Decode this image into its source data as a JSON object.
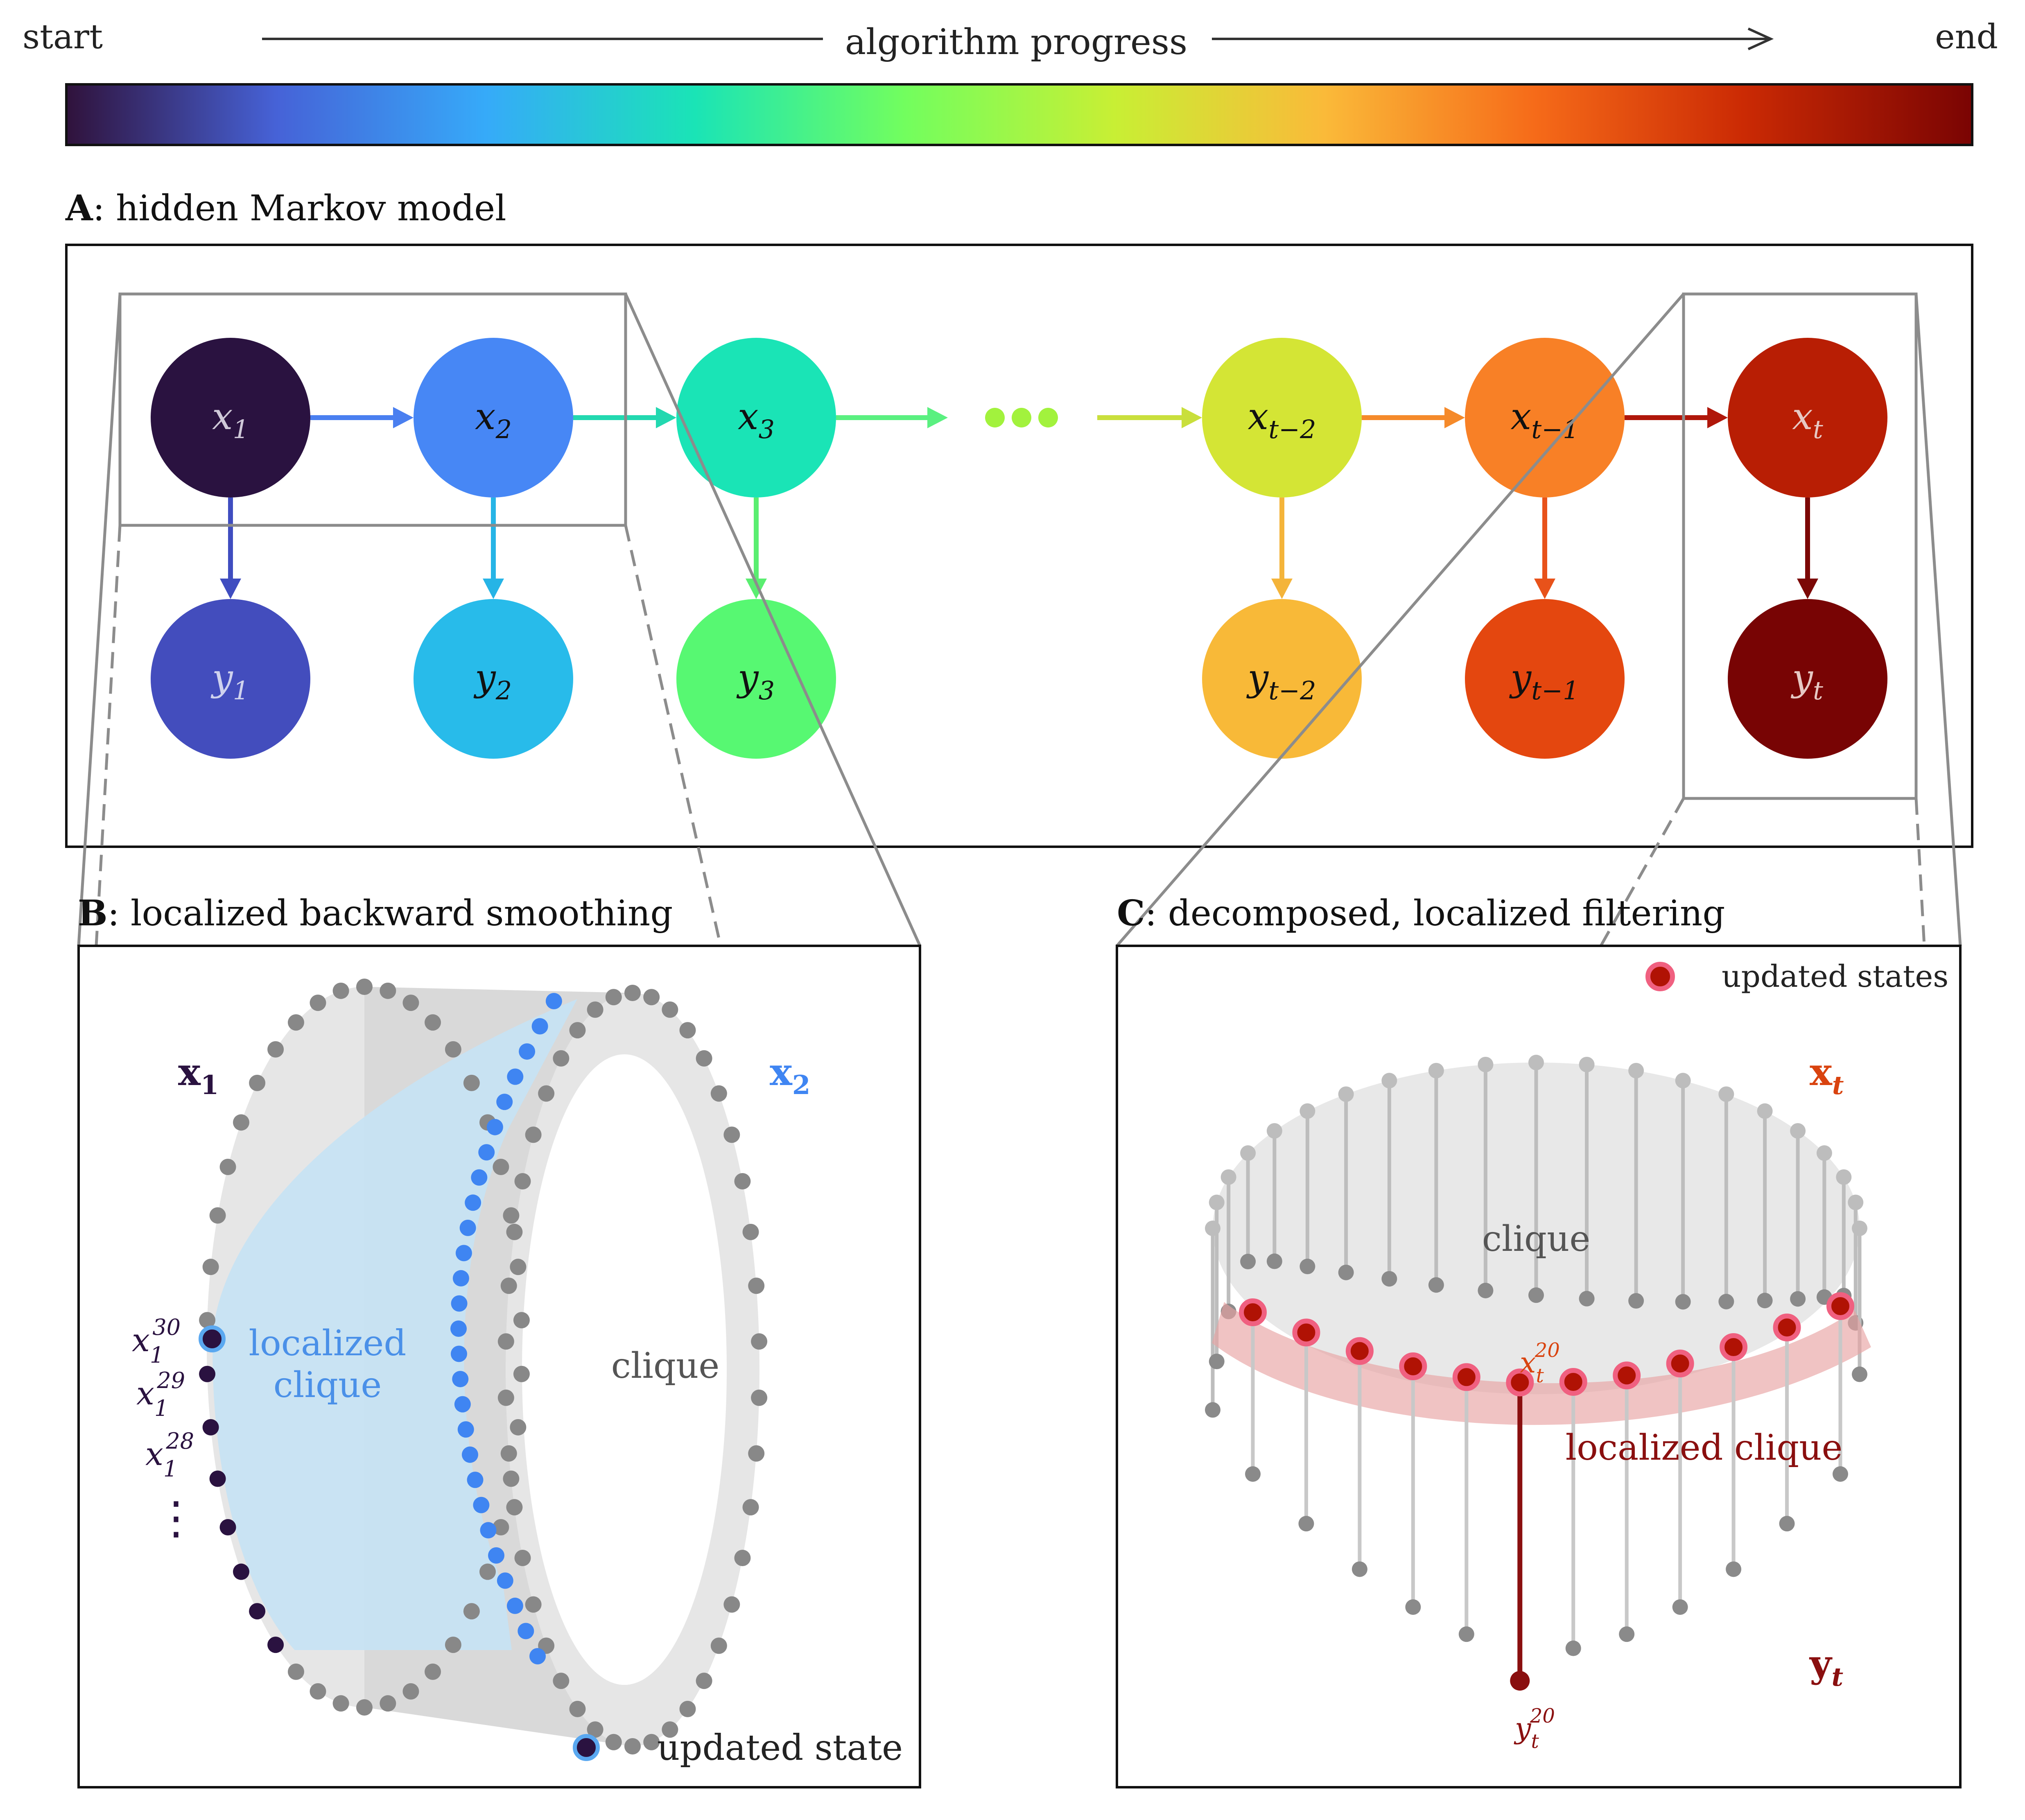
{
  "progress_bar": {
    "start_label": "start",
    "end_label": "end",
    "title": "algorithm progress",
    "colormap": [
      "#30123b",
      "#4662d7",
      "#36aaf9",
      "#1ae4b6",
      "#72fe5e",
      "#c8ef34",
      "#faba39",
      "#f66b19",
      "#cb2a04",
      "#7a0403"
    ]
  },
  "panel_a": {
    "label_letter": "A",
    "label_text": ": hidden Markov model",
    "hidden_nodes": [
      {
        "base": "x",
        "sub": "1",
        "color": "#2a1240",
        "text_color": "#cfc8d8"
      },
      {
        "base": "x",
        "sub": "2",
        "color": "#4787f5",
        "text_color": "#111111"
      },
      {
        "base": "x",
        "sub": "3",
        "color": "#1ae4b6",
        "text_color": "#111111"
      },
      {
        "base": "x",
        "sub": "t−2",
        "color": "#d4e535",
        "text_color": "#111111"
      },
      {
        "base": "x",
        "sub": "t−1",
        "color": "#f88026",
        "text_color": "#111111"
      },
      {
        "base": "x",
        "sub": "t",
        "color": "#b81e04",
        "text_color": "#e7c9c4"
      }
    ],
    "observed_nodes": [
      {
        "base": "y",
        "sub": "1",
        "color": "#434dbd",
        "text_color": "#cfd2ee"
      },
      {
        "base": "y",
        "sub": "2",
        "color": "#28bbea",
        "text_color": "#111111"
      },
      {
        "base": "y",
        "sub": "3",
        "color": "#57f872",
        "text_color": "#111111"
      },
      {
        "base": "y",
        "sub": "t−2",
        "color": "#f8b938",
        "text_color": "#111111"
      },
      {
        "base": "y",
        "sub": "t−1",
        "color": "#e4470f",
        "text_color": "#111111"
      },
      {
        "base": "y",
        "sub": "t",
        "color": "#780404",
        "text_color": "#e7c9c4"
      }
    ],
    "ellipsis_color": "#a2f23d"
  },
  "panel_b": {
    "label_letter": "B",
    "label_text": ": localized backward smoothing",
    "x1_label": "x",
    "x1_sub": "1",
    "x2_label": "x",
    "x2_sub": "2",
    "state_labels": [
      {
        "base": "x",
        "sub": "1",
        "sup": "30"
      },
      {
        "base": "x",
        "sub": "1",
        "sup": "29"
      },
      {
        "base": "x",
        "sub": "1",
        "sup": "28"
      }
    ],
    "vdots": "⋮",
    "localized_clique_line1": "localized",
    "localized_clique_line2": "clique",
    "clique_label": "clique",
    "legend_label": "updated state",
    "colors": {
      "x1": "#2a1240",
      "x2": "#3f85f2",
      "gray": "#888888",
      "clique_fill": "#c5e2f4"
    }
  },
  "panel_c": {
    "label_letter": "C",
    "label_text": ": decomposed, localized filtering",
    "legend_label": "updated states",
    "xt_label": "x",
    "xt_sub": "t",
    "yt_label": "y",
    "yt_sub": "t",
    "clique_label": "clique",
    "localized_clique_label": "localized clique",
    "xt20": {
      "base": "x",
      "sub": "t",
      "sup": "20"
    },
    "yt20": {
      "base": "y",
      "sub": "t",
      "sup": "20"
    },
    "colors": {
      "xt": "#d9430f",
      "yt": "#8a0f0f",
      "red_dot": "#b01204",
      "pink": "#f06080"
    }
  }
}
